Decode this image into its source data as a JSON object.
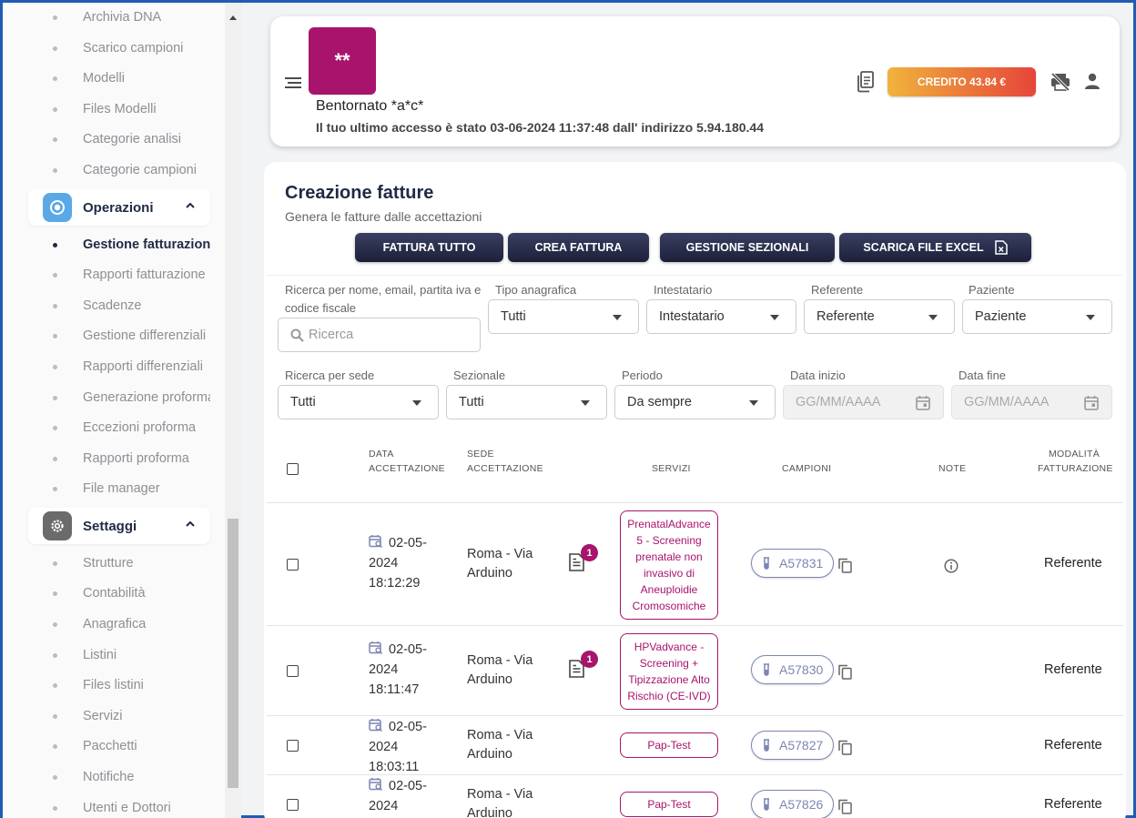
{
  "sidebar": {
    "items_top": [
      {
        "label": "Archivia DNA"
      },
      {
        "label": "Scarico campioni"
      },
      {
        "label": "Modelli"
      },
      {
        "label": "Files Modelli"
      },
      {
        "label": "Categorie analisi"
      },
      {
        "label": "Categorie campioni"
      }
    ],
    "group_operazioni": {
      "label": "Operazioni",
      "icon": "target-icon",
      "color": "#5aa8e6"
    },
    "items_operazioni": [
      {
        "label": "Gestione fatturazione",
        "active": true
      },
      {
        "label": "Rapporti fatturazione"
      },
      {
        "label": "Scadenze"
      },
      {
        "label": "Gestione differenziali"
      },
      {
        "label": "Rapporti differenziali"
      },
      {
        "label": "Generazione proforma"
      },
      {
        "label": "Eccezioni proforma"
      },
      {
        "label": "Rapporti proforma"
      },
      {
        "label": "File manager"
      }
    ],
    "group_settaggi": {
      "label": "Settaggi",
      "icon": "gear-icon",
      "color": "#6b6b6b"
    },
    "items_settaggi": [
      {
        "label": "Strutture"
      },
      {
        "label": "Contabilità"
      },
      {
        "label": "Anagrafica"
      },
      {
        "label": "Listini"
      },
      {
        "label": "Files listini"
      },
      {
        "label": "Servizi"
      },
      {
        "label": "Pacchetti"
      },
      {
        "label": "Notifiche"
      },
      {
        "label": "Utenti e Dottori"
      }
    ]
  },
  "header": {
    "logo_text": "**",
    "welcome": "Bentornato *a*c*",
    "last_access": "Il tuo ultimo accesso è stato 03-06-2024 11:37:48 dall' indirizzo 5.94.180.44",
    "credit_label": "CREDITO 43.84 €"
  },
  "page": {
    "title": "Creazione fatture",
    "subtitle": "Genera le fatture dalle accettazioni",
    "buttons": {
      "fattura_tutto": "FATTURA TUTTO",
      "crea_fattura": "CREA FATTURA",
      "gestione_sezionali": "GESTIONE SEZIONALI",
      "scarica_excel": "SCARICA FILE EXCEL"
    }
  },
  "filters": {
    "search_label": "Ricerca per nome, email, partita iva e codice fiscale",
    "search_placeholder": "Ricerca",
    "tipo_anagrafica_label": "Tipo anagrafica",
    "tipo_anagrafica_value": "Tutti",
    "intestatario_label": "Intestatario",
    "intestatario_value": "Intestatario",
    "referente_label": "Referente",
    "referente_value": "Referente",
    "paziente_label": "Paziente",
    "paziente_value": "Paziente",
    "sede_label": "Ricerca per sede",
    "sede_value": "Tutti",
    "sezionale_label": "Sezionale",
    "sezionale_value": "Tutti",
    "periodo_label": "Periodo",
    "periodo_value": "Da sempre",
    "data_inizio_label": "Data inizio",
    "data_inizio_placeholder": "GG/MM/AAAA",
    "data_fine_label": "Data fine",
    "data_fine_placeholder": "GG/MM/AAAA"
  },
  "table": {
    "headers": {
      "data_line1": "DATA",
      "data_line2": "ACCETTAZIONE",
      "sede_line1": "SEDE",
      "sede_line2": "ACCETTAZIONE",
      "servizi": "SERVIZI",
      "campioni": "CAMPIONI",
      "note": "NOTE",
      "mod_line1": "MODALITÀ",
      "mod_line2": "FATTURAZIONE"
    },
    "rows": [
      {
        "date1": "02-05-",
        "date2": "2024",
        "date3": "18:12:29",
        "sede1": "Roma - Via",
        "sede2": "Arduino",
        "badge": "1",
        "service": "PrenatalAdvance 5 - Screening prenatale non invasivo di Aneuploidie Cromosomiche",
        "sample": "A57831",
        "modalita": "Referente"
      },
      {
        "date1": "02-05-",
        "date2": "2024",
        "date3": "18:11:47",
        "sede1": "Roma - Via",
        "sede2": "Arduino",
        "badge": "1",
        "service": "HPVadvance - Screening + Tipizzazione Alto Rischio (CE-IVD)",
        "sample": "A57830",
        "modalita": "Referente"
      },
      {
        "date1": "02-05-",
        "date2": "2024",
        "date3": "18:03:11",
        "sede1": "Roma - Via",
        "sede2": "Arduino",
        "service": "Pap-Test",
        "sample": "A57827",
        "modalita": "Referente"
      },
      {
        "date1": "02-05-",
        "date2": "2024",
        "date3": "",
        "sede1": "Roma - Via",
        "sede2": "Arduino",
        "service": "Pap-Test",
        "sample": "A57826",
        "modalita": "Referente"
      }
    ]
  }
}
